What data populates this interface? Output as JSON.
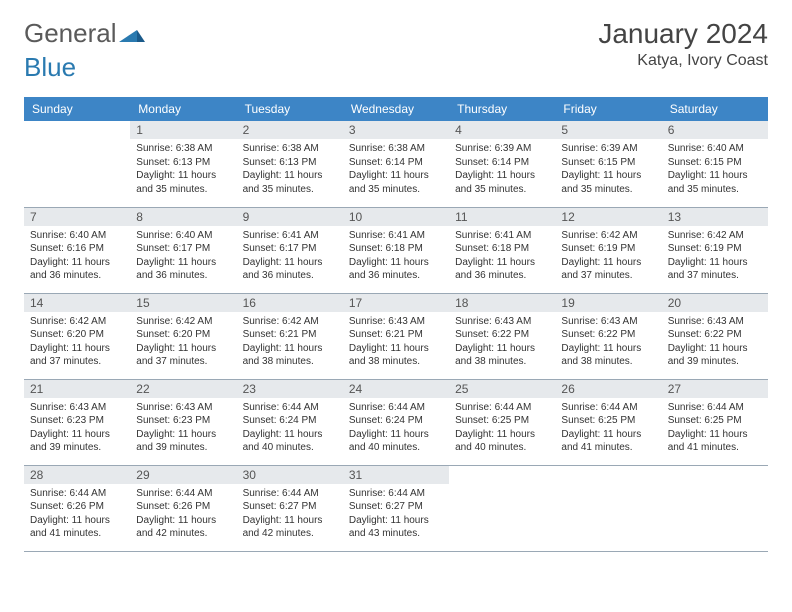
{
  "brand": {
    "part1": "General",
    "part2": "Blue"
  },
  "title": "January 2024",
  "location": "Katya, Ivory Coast",
  "colors": {
    "header_bg": "#3d85c6",
    "header_text": "#ffffff",
    "daynum_bg": "#e6e9ec",
    "row_border": "#9aa8b5",
    "brand_gray": "#5a5a5a",
    "brand_blue": "#2a7ab0"
  },
  "weekdays": [
    "Sunday",
    "Monday",
    "Tuesday",
    "Wednesday",
    "Thursday",
    "Friday",
    "Saturday"
  ],
  "weeks": [
    [
      {
        "n": "",
        "sr": "",
        "ss": "",
        "dl": ""
      },
      {
        "n": "1",
        "sr": "Sunrise: 6:38 AM",
        "ss": "Sunset: 6:13 PM",
        "dl": "Daylight: 11 hours and 35 minutes."
      },
      {
        "n": "2",
        "sr": "Sunrise: 6:38 AM",
        "ss": "Sunset: 6:13 PM",
        "dl": "Daylight: 11 hours and 35 minutes."
      },
      {
        "n": "3",
        "sr": "Sunrise: 6:38 AM",
        "ss": "Sunset: 6:14 PM",
        "dl": "Daylight: 11 hours and 35 minutes."
      },
      {
        "n": "4",
        "sr": "Sunrise: 6:39 AM",
        "ss": "Sunset: 6:14 PM",
        "dl": "Daylight: 11 hours and 35 minutes."
      },
      {
        "n": "5",
        "sr": "Sunrise: 6:39 AM",
        "ss": "Sunset: 6:15 PM",
        "dl": "Daylight: 11 hours and 35 minutes."
      },
      {
        "n": "6",
        "sr": "Sunrise: 6:40 AM",
        "ss": "Sunset: 6:15 PM",
        "dl": "Daylight: 11 hours and 35 minutes."
      }
    ],
    [
      {
        "n": "7",
        "sr": "Sunrise: 6:40 AM",
        "ss": "Sunset: 6:16 PM",
        "dl": "Daylight: 11 hours and 36 minutes."
      },
      {
        "n": "8",
        "sr": "Sunrise: 6:40 AM",
        "ss": "Sunset: 6:17 PM",
        "dl": "Daylight: 11 hours and 36 minutes."
      },
      {
        "n": "9",
        "sr": "Sunrise: 6:41 AM",
        "ss": "Sunset: 6:17 PM",
        "dl": "Daylight: 11 hours and 36 minutes."
      },
      {
        "n": "10",
        "sr": "Sunrise: 6:41 AM",
        "ss": "Sunset: 6:18 PM",
        "dl": "Daylight: 11 hours and 36 minutes."
      },
      {
        "n": "11",
        "sr": "Sunrise: 6:41 AM",
        "ss": "Sunset: 6:18 PM",
        "dl": "Daylight: 11 hours and 36 minutes."
      },
      {
        "n": "12",
        "sr": "Sunrise: 6:42 AM",
        "ss": "Sunset: 6:19 PM",
        "dl": "Daylight: 11 hours and 37 minutes."
      },
      {
        "n": "13",
        "sr": "Sunrise: 6:42 AM",
        "ss": "Sunset: 6:19 PM",
        "dl": "Daylight: 11 hours and 37 minutes."
      }
    ],
    [
      {
        "n": "14",
        "sr": "Sunrise: 6:42 AM",
        "ss": "Sunset: 6:20 PM",
        "dl": "Daylight: 11 hours and 37 minutes."
      },
      {
        "n": "15",
        "sr": "Sunrise: 6:42 AM",
        "ss": "Sunset: 6:20 PM",
        "dl": "Daylight: 11 hours and 37 minutes."
      },
      {
        "n": "16",
        "sr": "Sunrise: 6:42 AM",
        "ss": "Sunset: 6:21 PM",
        "dl": "Daylight: 11 hours and 38 minutes."
      },
      {
        "n": "17",
        "sr": "Sunrise: 6:43 AM",
        "ss": "Sunset: 6:21 PM",
        "dl": "Daylight: 11 hours and 38 minutes."
      },
      {
        "n": "18",
        "sr": "Sunrise: 6:43 AM",
        "ss": "Sunset: 6:22 PM",
        "dl": "Daylight: 11 hours and 38 minutes."
      },
      {
        "n": "19",
        "sr": "Sunrise: 6:43 AM",
        "ss": "Sunset: 6:22 PM",
        "dl": "Daylight: 11 hours and 38 minutes."
      },
      {
        "n": "20",
        "sr": "Sunrise: 6:43 AM",
        "ss": "Sunset: 6:22 PM",
        "dl": "Daylight: 11 hours and 39 minutes."
      }
    ],
    [
      {
        "n": "21",
        "sr": "Sunrise: 6:43 AM",
        "ss": "Sunset: 6:23 PM",
        "dl": "Daylight: 11 hours and 39 minutes."
      },
      {
        "n": "22",
        "sr": "Sunrise: 6:43 AM",
        "ss": "Sunset: 6:23 PM",
        "dl": "Daylight: 11 hours and 39 minutes."
      },
      {
        "n": "23",
        "sr": "Sunrise: 6:44 AM",
        "ss": "Sunset: 6:24 PM",
        "dl": "Daylight: 11 hours and 40 minutes."
      },
      {
        "n": "24",
        "sr": "Sunrise: 6:44 AM",
        "ss": "Sunset: 6:24 PM",
        "dl": "Daylight: 11 hours and 40 minutes."
      },
      {
        "n": "25",
        "sr": "Sunrise: 6:44 AM",
        "ss": "Sunset: 6:25 PM",
        "dl": "Daylight: 11 hours and 40 minutes."
      },
      {
        "n": "26",
        "sr": "Sunrise: 6:44 AM",
        "ss": "Sunset: 6:25 PM",
        "dl": "Daylight: 11 hours and 41 minutes."
      },
      {
        "n": "27",
        "sr": "Sunrise: 6:44 AM",
        "ss": "Sunset: 6:25 PM",
        "dl": "Daylight: 11 hours and 41 minutes."
      }
    ],
    [
      {
        "n": "28",
        "sr": "Sunrise: 6:44 AM",
        "ss": "Sunset: 6:26 PM",
        "dl": "Daylight: 11 hours and 41 minutes."
      },
      {
        "n": "29",
        "sr": "Sunrise: 6:44 AM",
        "ss": "Sunset: 6:26 PM",
        "dl": "Daylight: 11 hours and 42 minutes."
      },
      {
        "n": "30",
        "sr": "Sunrise: 6:44 AM",
        "ss": "Sunset: 6:27 PM",
        "dl": "Daylight: 11 hours and 42 minutes."
      },
      {
        "n": "31",
        "sr": "Sunrise: 6:44 AM",
        "ss": "Sunset: 6:27 PM",
        "dl": "Daylight: 11 hours and 43 minutes."
      },
      {
        "n": "",
        "sr": "",
        "ss": "",
        "dl": ""
      },
      {
        "n": "",
        "sr": "",
        "ss": "",
        "dl": ""
      },
      {
        "n": "",
        "sr": "",
        "ss": "",
        "dl": ""
      }
    ]
  ]
}
